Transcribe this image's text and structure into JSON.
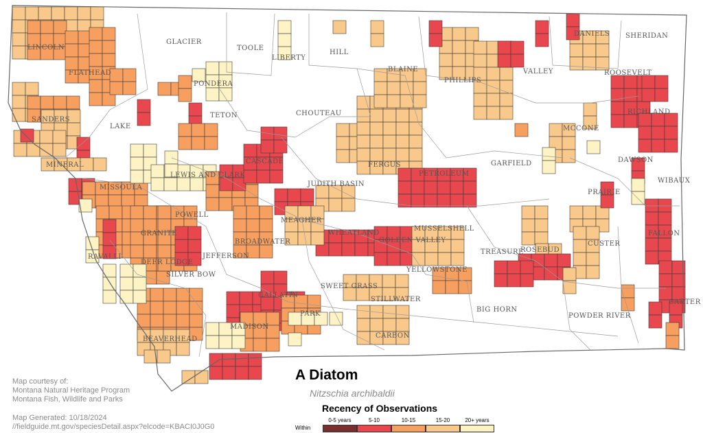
{
  "title": "A Diatom",
  "scientific_name": "Nitzschia archibaldii",
  "legend": {
    "title": "Recency of Observations",
    "within_label": "Within",
    "categories": [
      {
        "label": "0-5 years",
        "color": "#7a2e2e"
      },
      {
        "label": "5-10",
        "color": "#e8474e"
      },
      {
        "label": "10-15",
        "color": "#f79f5f"
      },
      {
        "label": "15-20",
        "color": "#f9c98b"
      },
      {
        "label": "20+ years",
        "color": "#fdf3c4"
      }
    ]
  },
  "credits": {
    "lines": [
      "Map courtesy of:",
      "Montana Natural Heritage Program",
      "Montana Fish, Wildlife and Parks"
    ],
    "generated": "Map Generated: 10/18/2024",
    "url": "//fieldguide.mt.gov/speciesDetail.aspx?elcode=KBACI0J0G0"
  },
  "counties": [
    "GLACIER",
    "TOOLE",
    "LIBERTY",
    "HILL",
    "BLAINE",
    "PHILLIPS",
    "VALLEY",
    "DANIELS",
    "SHERIDAN",
    "ROOSEVELT",
    "LINCOLN",
    "FLATHEAD",
    "PONDERA",
    "TETON",
    "CHOUTEAU",
    "LAKE",
    "SANDERS",
    "MINERAL",
    "MISSOULA",
    "LEWIS AND CLARK",
    "CASCADE",
    "JUDITH BASIN",
    "FERGUS",
    "PETROLEUM",
    "GARFIELD",
    "MCCONE",
    "RICHLAND",
    "DAWSON",
    "WIBAUX",
    "PRAIRIE",
    "POWELL",
    "GRANITE",
    "MEAGHER",
    "WHEATLAND",
    "GOLDEN VALLEY",
    "MUSSELSHELL",
    "ROSEBUD",
    "TREASURE",
    "CUSTER",
    "FALLON",
    "RAVALLI",
    "DEER LODGE",
    "SILVER BOW",
    "JEFFERSON",
    "BROADWATER",
    "YELLOWSTONE",
    "SWEET GRASS",
    "STILLWATER",
    "BIG HORN",
    "POWDER RIVER",
    "CARTER",
    "GALLATIN",
    "PARK",
    "CARBON",
    "MADISON",
    "BEAVERHEAD"
  ]
}
